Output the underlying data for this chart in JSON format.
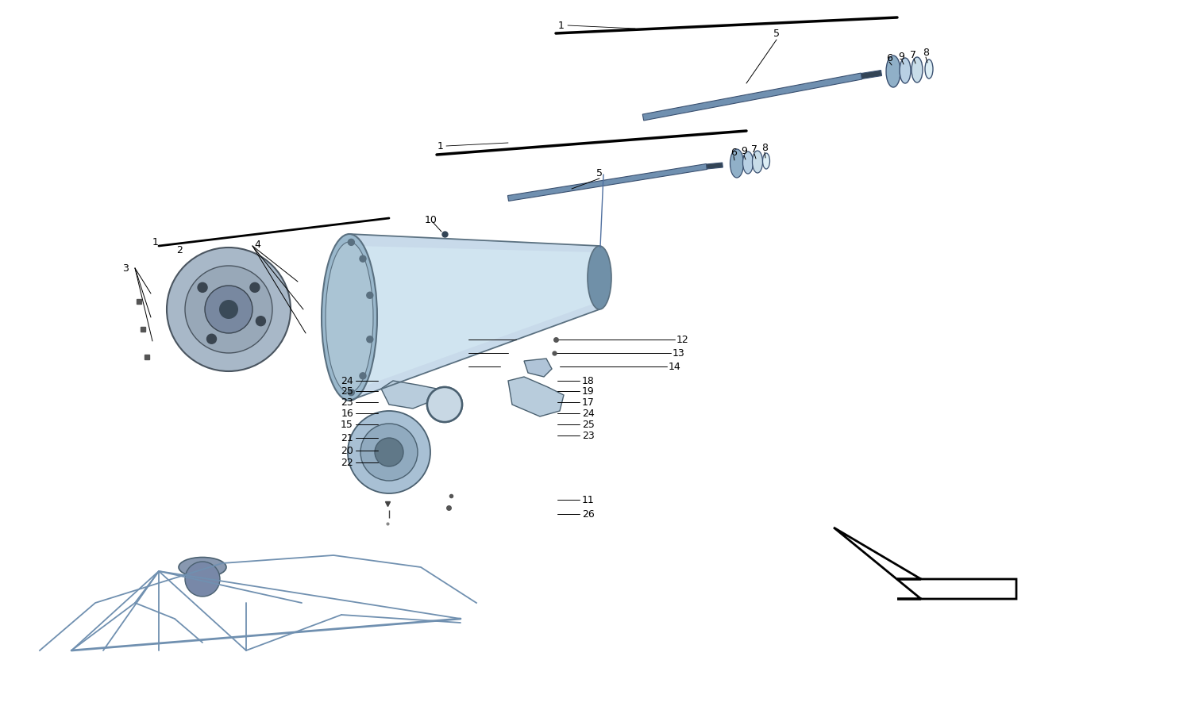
{
  "bg_color": "#ffffff",
  "housing_fill": "#b8cfe0",
  "housing_fill2": "#c8daea",
  "housing_edge": "#5a7080",
  "housing_inner": "#9ab8cc",
  "disc_fill1": "#a8b8c8",
  "disc_fill2": "#8898a8",
  "disc_fill3": "#6a7a8a",
  "frame_color": "#7090b0",
  "shaft_color": "#7090b0",
  "ring_fill": "#b0c8dc",
  "ring_edge": "#4a6070",
  "label_fs": 9,
  "line_color": "#000000"
}
